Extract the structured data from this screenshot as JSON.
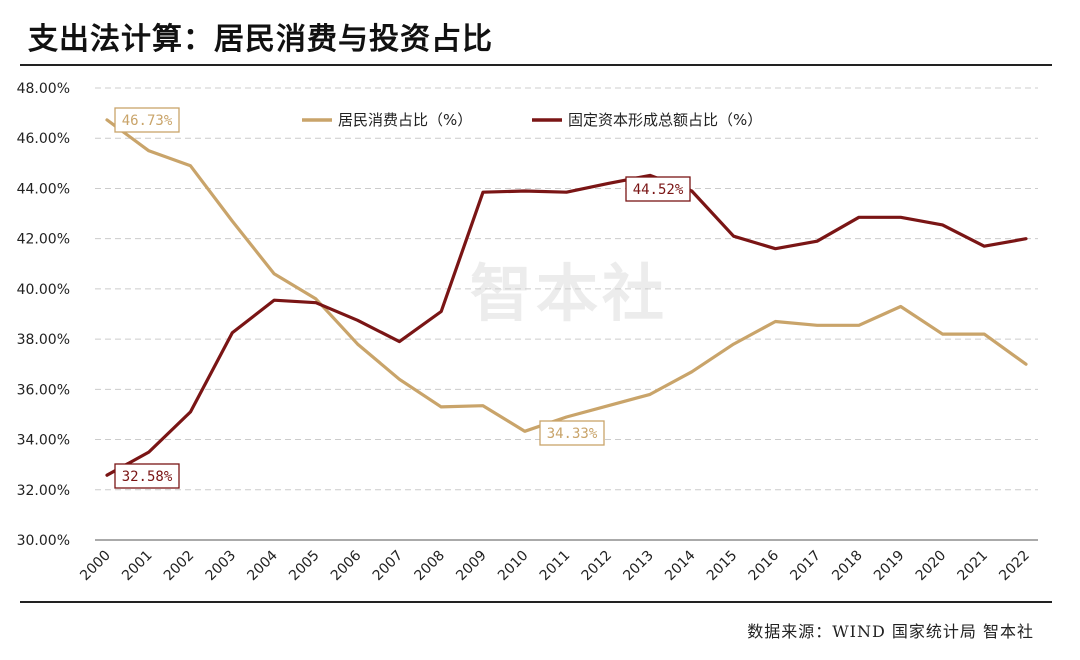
{
  "header": {
    "title": "支出法计算：居民消费与投资占比"
  },
  "footer": {
    "source": "数据来源：WIND 国家统计局 智本社"
  },
  "watermark": "智本社",
  "colors": {
    "consumption": "#C9A46A",
    "investment": "#7A1515",
    "grid": "#cccccc"
  },
  "chart_data": {
    "type": "line",
    "x": [
      "2000",
      "2001",
      "2002",
      "2003",
      "2004",
      "2005",
      "2006",
      "2007",
      "2008",
      "2009",
      "2010",
      "2011",
      "2012",
      "2013",
      "2014",
      "2015",
      "2016",
      "2017",
      "2018",
      "2019",
      "2020",
      "2021",
      "2022"
    ],
    "ylim": [
      30,
      48
    ],
    "yticks": [
      30,
      32,
      34,
      36,
      38,
      40,
      42,
      44,
      46,
      48
    ],
    "ytick_labels": [
      "30.00%",
      "32.00%",
      "34.00%",
      "36.00%",
      "38.00%",
      "40.00%",
      "42.00%",
      "44.00%",
      "46.00%",
      "48.00%"
    ],
    "grid": true,
    "legend_position": "top",
    "series": [
      {
        "name": "居民消费占比（%）",
        "color": "#C9A46A",
        "values": [
          46.73,
          45.5,
          44.9,
          42.7,
          40.6,
          39.6,
          37.8,
          36.4,
          35.3,
          35.35,
          34.33,
          34.9,
          35.35,
          35.8,
          36.7,
          37.8,
          38.7,
          38.55,
          38.55,
          39.3,
          38.2,
          38.2,
          37.0
        ]
      },
      {
        "name": "固定资本形成总额占比（%）",
        "color": "#7A1515",
        "values": [
          32.58,
          33.5,
          35.1,
          38.25,
          39.55,
          39.45,
          38.75,
          37.9,
          39.1,
          43.85,
          43.9,
          43.85,
          44.2,
          44.52,
          43.9,
          42.1,
          41.6,
          41.9,
          42.85,
          42.85,
          42.55,
          41.7,
          42.0
        ]
      }
    ],
    "annotations": [
      {
        "text": "46.73%",
        "series": 0,
        "index": 0
      },
      {
        "text": "34.33%",
        "series": 0,
        "index": 10
      },
      {
        "text": "32.58%",
        "series": 1,
        "index": 0
      },
      {
        "text": "44.52%",
        "series": 1,
        "index": 13
      }
    ]
  }
}
